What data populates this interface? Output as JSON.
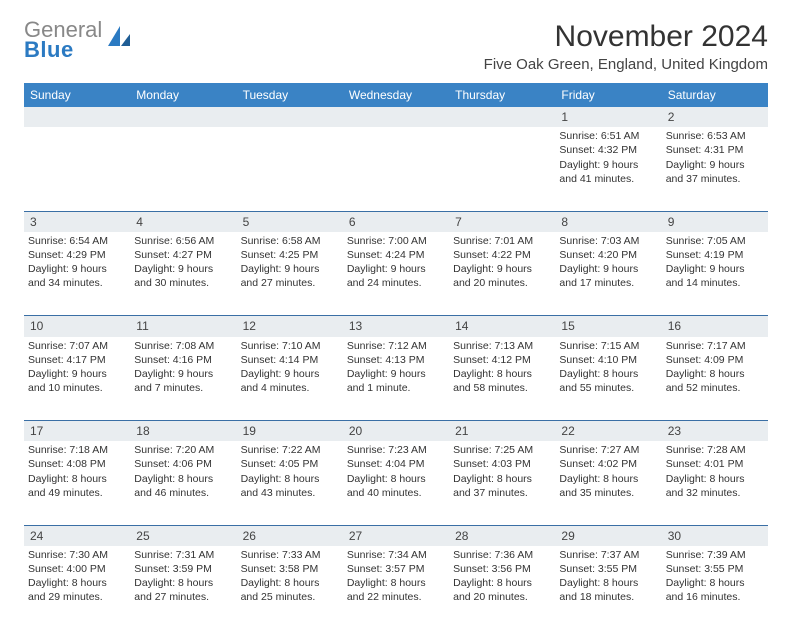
{
  "logo": {
    "line1": "General",
    "line2": "Blue"
  },
  "title": "November 2024",
  "location": "Five Oak Green, England, United Kingdom",
  "colors": {
    "header_bg": "#3a83c5",
    "header_text": "#ffffff",
    "daynum_bg": "#e9edf0",
    "row_border": "#3a6fa5",
    "logo_accent": "#2b7ac2",
    "text": "#333333"
  },
  "weekdays": [
    "Sunday",
    "Monday",
    "Tuesday",
    "Wednesday",
    "Thursday",
    "Friday",
    "Saturday"
  ],
  "weeks": [
    {
      "nums": [
        "",
        "",
        "",
        "",
        "",
        "1",
        "2"
      ],
      "cells": [
        null,
        null,
        null,
        null,
        null,
        {
          "sunrise": "Sunrise: 6:51 AM",
          "sunset": "Sunset: 4:32 PM",
          "day1": "Daylight: 9 hours",
          "day2": "and 41 minutes."
        },
        {
          "sunrise": "Sunrise: 6:53 AM",
          "sunset": "Sunset: 4:31 PM",
          "day1": "Daylight: 9 hours",
          "day2": "and 37 minutes."
        }
      ]
    },
    {
      "nums": [
        "3",
        "4",
        "5",
        "6",
        "7",
        "8",
        "9"
      ],
      "cells": [
        {
          "sunrise": "Sunrise: 6:54 AM",
          "sunset": "Sunset: 4:29 PM",
          "day1": "Daylight: 9 hours",
          "day2": "and 34 minutes."
        },
        {
          "sunrise": "Sunrise: 6:56 AM",
          "sunset": "Sunset: 4:27 PM",
          "day1": "Daylight: 9 hours",
          "day2": "and 30 minutes."
        },
        {
          "sunrise": "Sunrise: 6:58 AM",
          "sunset": "Sunset: 4:25 PM",
          "day1": "Daylight: 9 hours",
          "day2": "and 27 minutes."
        },
        {
          "sunrise": "Sunrise: 7:00 AM",
          "sunset": "Sunset: 4:24 PM",
          "day1": "Daylight: 9 hours",
          "day2": "and 24 minutes."
        },
        {
          "sunrise": "Sunrise: 7:01 AM",
          "sunset": "Sunset: 4:22 PM",
          "day1": "Daylight: 9 hours",
          "day2": "and 20 minutes."
        },
        {
          "sunrise": "Sunrise: 7:03 AM",
          "sunset": "Sunset: 4:20 PM",
          "day1": "Daylight: 9 hours",
          "day2": "and 17 minutes."
        },
        {
          "sunrise": "Sunrise: 7:05 AM",
          "sunset": "Sunset: 4:19 PM",
          "day1": "Daylight: 9 hours",
          "day2": "and 14 minutes."
        }
      ]
    },
    {
      "nums": [
        "10",
        "11",
        "12",
        "13",
        "14",
        "15",
        "16"
      ],
      "cells": [
        {
          "sunrise": "Sunrise: 7:07 AM",
          "sunset": "Sunset: 4:17 PM",
          "day1": "Daylight: 9 hours",
          "day2": "and 10 minutes."
        },
        {
          "sunrise": "Sunrise: 7:08 AM",
          "sunset": "Sunset: 4:16 PM",
          "day1": "Daylight: 9 hours",
          "day2": "and 7 minutes."
        },
        {
          "sunrise": "Sunrise: 7:10 AM",
          "sunset": "Sunset: 4:14 PM",
          "day1": "Daylight: 9 hours",
          "day2": "and 4 minutes."
        },
        {
          "sunrise": "Sunrise: 7:12 AM",
          "sunset": "Sunset: 4:13 PM",
          "day1": "Daylight: 9 hours",
          "day2": "and 1 minute."
        },
        {
          "sunrise": "Sunrise: 7:13 AM",
          "sunset": "Sunset: 4:12 PM",
          "day1": "Daylight: 8 hours",
          "day2": "and 58 minutes."
        },
        {
          "sunrise": "Sunrise: 7:15 AM",
          "sunset": "Sunset: 4:10 PM",
          "day1": "Daylight: 8 hours",
          "day2": "and 55 minutes."
        },
        {
          "sunrise": "Sunrise: 7:17 AM",
          "sunset": "Sunset: 4:09 PM",
          "day1": "Daylight: 8 hours",
          "day2": "and 52 minutes."
        }
      ]
    },
    {
      "nums": [
        "17",
        "18",
        "19",
        "20",
        "21",
        "22",
        "23"
      ],
      "cells": [
        {
          "sunrise": "Sunrise: 7:18 AM",
          "sunset": "Sunset: 4:08 PM",
          "day1": "Daylight: 8 hours",
          "day2": "and 49 minutes."
        },
        {
          "sunrise": "Sunrise: 7:20 AM",
          "sunset": "Sunset: 4:06 PM",
          "day1": "Daylight: 8 hours",
          "day2": "and 46 minutes."
        },
        {
          "sunrise": "Sunrise: 7:22 AM",
          "sunset": "Sunset: 4:05 PM",
          "day1": "Daylight: 8 hours",
          "day2": "and 43 minutes."
        },
        {
          "sunrise": "Sunrise: 7:23 AM",
          "sunset": "Sunset: 4:04 PM",
          "day1": "Daylight: 8 hours",
          "day2": "and 40 minutes."
        },
        {
          "sunrise": "Sunrise: 7:25 AM",
          "sunset": "Sunset: 4:03 PM",
          "day1": "Daylight: 8 hours",
          "day2": "and 37 minutes."
        },
        {
          "sunrise": "Sunrise: 7:27 AM",
          "sunset": "Sunset: 4:02 PM",
          "day1": "Daylight: 8 hours",
          "day2": "and 35 minutes."
        },
        {
          "sunrise": "Sunrise: 7:28 AM",
          "sunset": "Sunset: 4:01 PM",
          "day1": "Daylight: 8 hours",
          "day2": "and 32 minutes."
        }
      ]
    },
    {
      "nums": [
        "24",
        "25",
        "26",
        "27",
        "28",
        "29",
        "30"
      ],
      "cells": [
        {
          "sunrise": "Sunrise: 7:30 AM",
          "sunset": "Sunset: 4:00 PM",
          "day1": "Daylight: 8 hours",
          "day2": "and 29 minutes."
        },
        {
          "sunrise": "Sunrise: 7:31 AM",
          "sunset": "Sunset: 3:59 PM",
          "day1": "Daylight: 8 hours",
          "day2": "and 27 minutes."
        },
        {
          "sunrise": "Sunrise: 7:33 AM",
          "sunset": "Sunset: 3:58 PM",
          "day1": "Daylight: 8 hours",
          "day2": "and 25 minutes."
        },
        {
          "sunrise": "Sunrise: 7:34 AM",
          "sunset": "Sunset: 3:57 PM",
          "day1": "Daylight: 8 hours",
          "day2": "and 22 minutes."
        },
        {
          "sunrise": "Sunrise: 7:36 AM",
          "sunset": "Sunset: 3:56 PM",
          "day1": "Daylight: 8 hours",
          "day2": "and 20 minutes."
        },
        {
          "sunrise": "Sunrise: 7:37 AM",
          "sunset": "Sunset: 3:55 PM",
          "day1": "Daylight: 8 hours",
          "day2": "and 18 minutes."
        },
        {
          "sunrise": "Sunrise: 7:39 AM",
          "sunset": "Sunset: 3:55 PM",
          "day1": "Daylight: 8 hours",
          "day2": "and 16 minutes."
        }
      ]
    }
  ]
}
